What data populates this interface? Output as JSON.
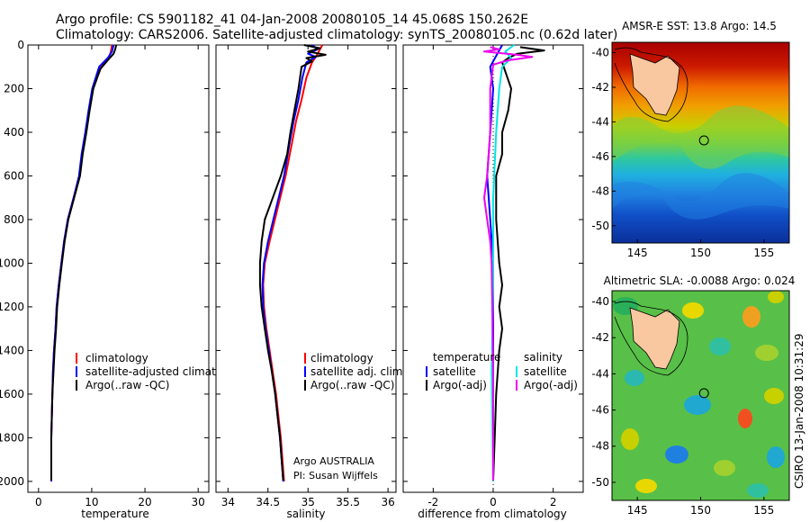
{
  "header": {
    "line1": "Argo profile: CS 5901182_41 04-Jan-2008 20080105_14 45.068S 150.262E",
    "line2": "Climatology: CARS2006. Satellite-adjusted climatology: synTS_20080105.nc (0.62d later)"
  },
  "side_label": "CSIRO 13-Jan-2008 10:31:29",
  "chart_data": [
    {
      "id": "temperature",
      "type": "line",
      "xlabel": "temperature",
      "ylabel": "",
      "xlim": [
        -2,
        32
      ],
      "ylim": [
        0,
        2050
      ],
      "y_reversed": true,
      "xticks": [
        0,
        10,
        20,
        30
      ],
      "yticks": [
        0,
        200,
        400,
        600,
        800,
        1000,
        1200,
        1400,
        1600,
        1800,
        2000
      ],
      "legend": [
        {
          "label": "climatology",
          "color": "#ff0000"
        },
        {
          "label": "satellite-adjusted climatology",
          "color": "#0000ff"
        },
        {
          "label": "Argo(..raw -QC)",
          "color": "#000000"
        }
      ],
      "series": [
        {
          "name": "climatology",
          "color": "#ff0000",
          "points": [
            [
              13.8,
              0
            ],
            [
              13.6,
              30
            ],
            [
              13.2,
              60
            ],
            [
              11.8,
              100
            ],
            [
              10.2,
              200
            ],
            [
              9.5,
              300
            ],
            [
              8.9,
              400
            ],
            [
              8.2,
              500
            ],
            [
              7.7,
              600
            ],
            [
              6.6,
              700
            ],
            [
              5.5,
              800
            ],
            [
              4.8,
              900
            ],
            [
              4.3,
              1000
            ],
            [
              3.8,
              1100
            ],
            [
              3.4,
              1200
            ],
            [
              3.2,
              1300
            ],
            [
              2.9,
              1400
            ],
            [
              2.7,
              1500
            ],
            [
              2.6,
              1600
            ],
            [
              2.5,
              1700
            ],
            [
              2.4,
              1800
            ],
            [
              2.4,
              1900
            ],
            [
              2.4,
              2000
            ]
          ]
        },
        {
          "name": "satellite-adjusted climatology",
          "color": "#0000ff",
          "points": [
            [
              14.1,
              0
            ],
            [
              13.8,
              30
            ],
            [
              13.0,
              60
            ],
            [
              11.4,
              100
            ],
            [
              10.1,
              200
            ],
            [
              9.4,
              300
            ],
            [
              8.8,
              400
            ],
            [
              8.1,
              500
            ],
            [
              7.6,
              600
            ],
            [
              6.6,
              700
            ],
            [
              5.5,
              800
            ],
            [
              4.8,
              900
            ],
            [
              4.3,
              1000
            ],
            [
              3.8,
              1100
            ],
            [
              3.4,
              1200
            ],
            [
              3.2,
              1300
            ],
            [
              2.9,
              1400
            ],
            [
              2.7,
              1500
            ],
            [
              2.6,
              1600
            ],
            [
              2.5,
              1700
            ],
            [
              2.4,
              1800
            ],
            [
              2.4,
              1900
            ],
            [
              2.4,
              2000
            ]
          ]
        },
        {
          "name": "Argo(..raw -QC)",
          "color": "#000000",
          "points": [
            [
              14.6,
              0
            ],
            [
              14.4,
              20
            ],
            [
              14.1,
              40
            ],
            [
              13.0,
              70
            ],
            [
              11.6,
              110
            ],
            [
              10.3,
              200
            ],
            [
              9.6,
              300
            ],
            [
              9.0,
              400
            ],
            [
              8.3,
              500
            ],
            [
              7.8,
              600
            ],
            [
              6.7,
              700
            ],
            [
              5.6,
              800
            ],
            [
              4.9,
              900
            ],
            [
              4.4,
              1000
            ],
            [
              3.9,
              1100
            ],
            [
              3.5,
              1200
            ],
            [
              3.3,
              1300
            ],
            [
              3.0,
              1400
            ],
            [
              2.8,
              1500
            ],
            [
              2.6,
              1600
            ],
            [
              2.5,
              1700
            ],
            [
              2.4,
              1800
            ],
            [
              2.4,
              1900
            ],
            [
              2.4,
              1995
            ]
          ]
        }
      ]
    },
    {
      "id": "salinity",
      "type": "line",
      "xlabel": "salinity",
      "ylabel": "",
      "xlim": [
        33.85,
        36.1
      ],
      "ylim": [
        0,
        2050
      ],
      "y_reversed": true,
      "xticks": [
        34,
        34.5,
        35,
        35.5,
        36
      ],
      "legend": [
        {
          "label": "climatology",
          "color": "#ff0000"
        },
        {
          "label": "satellite adj. clim.",
          "color": "#0000ff"
        },
        {
          "label": "Argo(..raw -QC)",
          "color": "#000000"
        }
      ],
      "annotations": [
        "Argo AUSTRALIA",
        "PI: Susan Wijffels"
      ],
      "series": [
        {
          "name": "climatology",
          "color": "#ff0000",
          "points": [
            [
              35.18,
              0
            ],
            [
              35.12,
              40
            ],
            [
              35.05,
              80
            ],
            [
              34.98,
              150
            ],
            [
              34.92,
              250
            ],
            [
              34.85,
              350
            ],
            [
              34.8,
              450
            ],
            [
              34.72,
              600
            ],
            [
              34.62,
              750
            ],
            [
              34.52,
              900
            ],
            [
              34.46,
              1000
            ],
            [
              34.44,
              1100
            ],
            [
              34.45,
              1200
            ],
            [
              34.48,
              1300
            ],
            [
              34.52,
              1400
            ],
            [
              34.56,
              1500
            ],
            [
              34.6,
              1600
            ],
            [
              34.63,
              1700
            ],
            [
              34.66,
              1800
            ],
            [
              34.68,
              1900
            ],
            [
              34.7,
              2000
            ]
          ]
        },
        {
          "name": "satellite adj. clim.",
          "color": "#0000ff",
          "points": [
            [
              35.05,
              0
            ],
            [
              35.12,
              20
            ],
            [
              35.0,
              40
            ],
            [
              35.1,
              55
            ],
            [
              34.98,
              80
            ],
            [
              34.93,
              150
            ],
            [
              34.88,
              250
            ],
            [
              34.82,
              350
            ],
            [
              34.77,
              450
            ],
            [
              34.7,
              600
            ],
            [
              34.6,
              750
            ],
            [
              34.5,
              900
            ],
            [
              34.45,
              1000
            ],
            [
              34.43,
              1100
            ],
            [
              34.44,
              1200
            ],
            [
              34.47,
              1300
            ],
            [
              34.51,
              1400
            ],
            [
              34.55,
              1500
            ],
            [
              34.59,
              1600
            ],
            [
              34.62,
              1700
            ],
            [
              34.65,
              1800
            ],
            [
              34.67,
              1900
            ],
            [
              34.69,
              2000
            ]
          ]
        },
        {
          "name": "Argo(..raw -QC)",
          "color": "#000000",
          "points": [
            [
              34.95,
              0
            ],
            [
              35.15,
              15
            ],
            [
              35.0,
              30
            ],
            [
              35.22,
              45
            ],
            [
              34.98,
              60
            ],
            [
              35.05,
              75
            ],
            [
              34.92,
              100
            ],
            [
              34.88,
              200
            ],
            [
              34.83,
              300
            ],
            [
              34.78,
              400
            ],
            [
              34.74,
              500
            ],
            [
              34.66,
              600
            ],
            [
              34.56,
              700
            ],
            [
              34.46,
              800
            ],
            [
              34.42,
              900
            ],
            [
              34.4,
              1000
            ],
            [
              34.4,
              1100
            ],
            [
              34.42,
              1200
            ],
            [
              34.46,
              1300
            ],
            [
              34.5,
              1400
            ],
            [
              34.55,
              1500
            ],
            [
              34.59,
              1600
            ],
            [
              34.62,
              1700
            ],
            [
              34.65,
              1800
            ],
            [
              34.67,
              1900
            ],
            [
              34.69,
              1995
            ]
          ]
        }
      ]
    },
    {
      "id": "difference",
      "type": "line",
      "xlabel": "difference from climatology",
      "ylabel": "",
      "xlim": [
        -3.0,
        3.0
      ],
      "ylim": [
        0,
        2050
      ],
      "y_reversed": true,
      "xticks": [
        -2,
        0,
        2
      ],
      "legend_left_title": "temperature",
      "legend_right_title": "salinity",
      "legend": [
        {
          "label": "satellite",
          "color": "#0000ff",
          "group": "temperature"
        },
        {
          "label": "Argo(-adj)",
          "color": "#000000",
          "group": "temperature"
        },
        {
          "label": "satellite",
          "color": "#00e5e5",
          "group": "salinity"
        },
        {
          "label": "Argo(-adj)",
          "color": "#ee00ee",
          "group": "salinity"
        }
      ],
      "series": [
        {
          "name": "temperature satellite",
          "color": "#0000ff",
          "points": [
            [
              0.3,
              0
            ],
            [
              0.1,
              50
            ],
            [
              -0.1,
              100
            ],
            [
              0.0,
              200
            ],
            [
              -0.1,
              400
            ],
            [
              -0.2,
              600
            ],
            [
              -0.1,
              800
            ],
            [
              0.0,
              1000
            ],
            [
              0.0,
              1400
            ],
            [
              0.0,
              2000
            ]
          ]
        },
        {
          "name": "temperature Argo(-adj)",
          "color": "#000000",
          "points": [
            [
              0.9,
              10
            ],
            [
              1.7,
              25
            ],
            [
              0.8,
              40
            ],
            [
              0.5,
              60
            ],
            [
              0.3,
              80
            ],
            [
              0.4,
              120
            ],
            [
              0.6,
              200
            ],
            [
              0.5,
              300
            ],
            [
              0.3,
              400
            ],
            [
              0.3,
              500
            ],
            [
              0.1,
              600
            ],
            [
              0.1,
              800
            ],
            [
              0.2,
              1000
            ],
            [
              0.3,
              1100
            ],
            [
              0.2,
              1200
            ],
            [
              0.3,
              1300
            ],
            [
              0.2,
              1400
            ],
            [
              0.1,
              1600
            ],
            [
              0.05,
              1800
            ],
            [
              0.0,
              1995
            ]
          ]
        },
        {
          "name": "salinity satellite",
          "color": "#00e5e5",
          "points": [
            [
              0.7,
              0
            ],
            [
              0.4,
              30
            ],
            [
              0.6,
              60
            ],
            [
              0.3,
              100
            ],
            [
              0.2,
              200
            ],
            [
              0.1,
              400
            ],
            [
              0.0,
              700
            ],
            [
              0.0,
              900
            ],
            [
              0.0,
              1100
            ],
            [
              -0.05,
              1500
            ],
            [
              0.0,
              2000
            ]
          ]
        },
        {
          "name": "salinity Argo(-adj)",
          "color": "#ee00ee",
          "points": [
            [
              -0.1,
              10
            ],
            [
              0.2,
              20
            ],
            [
              -0.3,
              30
            ],
            [
              0.8,
              45
            ],
            [
              1.3,
              55
            ],
            [
              0.5,
              70
            ],
            [
              0.0,
              90
            ],
            [
              -0.1,
              200
            ],
            [
              -0.1,
              400
            ],
            [
              -0.2,
              600
            ],
            [
              -0.3,
              700
            ],
            [
              -0.2,
              800
            ],
            [
              -0.1,
              900
            ],
            [
              -0.05,
              1000
            ],
            [
              0.0,
              1500
            ],
            [
              0.0,
              1995
            ]
          ]
        }
      ]
    },
    {
      "id": "sst_map",
      "type": "heatmap",
      "title": "AMSR-E SST: 13.8 Argo: 14.5",
      "xlim": [
        143,
        157
      ],
      "ylim": [
        -51,
        -39.4
      ],
      "xticks": [
        145,
        150,
        155
      ],
      "yticks": [
        -40,
        -42,
        -44,
        -46,
        -48,
        -50
      ],
      "profile_location": [
        150.26,
        -45.07
      ]
    },
    {
      "id": "sla_map",
      "type": "heatmap",
      "title": "Altimetric SLA: -0.0088 Argo: 0.024",
      "xlim": [
        143,
        157
      ],
      "ylim": [
        -51,
        -39.4
      ],
      "xticks": [
        145,
        150,
        155
      ],
      "yticks": [
        -40,
        -42,
        -44,
        -46,
        -48,
        -50
      ],
      "profile_location": [
        150.26,
        -45.07
      ]
    }
  ]
}
